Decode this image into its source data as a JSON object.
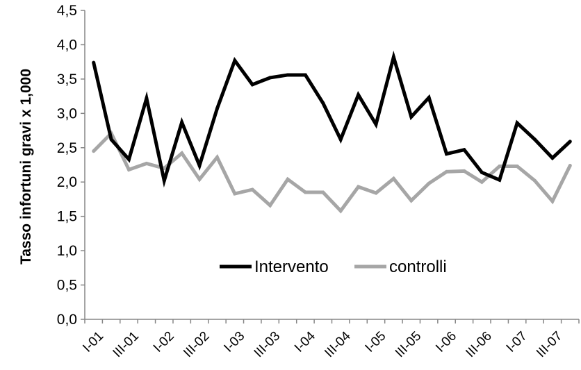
{
  "chart_data": {
    "type": "line",
    "title": "",
    "xlabel": "",
    "ylabel": "Tasso infortuni gravi x 1,000",
    "ylim": [
      0,
      4.5
    ],
    "yticks": [
      "0,0",
      "0,5",
      "1,0",
      "1,5",
      "2,0",
      "2,5",
      "3,0",
      "3,5",
      "4,0",
      "4,5"
    ],
    "grid": false,
    "legend_position": "inside-bottom-right",
    "x_tick_labels": [
      {
        "index": 0,
        "label": "I-01"
      },
      {
        "index": 2,
        "label": "III-01"
      },
      {
        "index": 4,
        "label": "I-02"
      },
      {
        "index": 6,
        "label": "III-02"
      },
      {
        "index": 8,
        "label": "I-03"
      },
      {
        "index": 10,
        "label": "III-03"
      },
      {
        "index": 12,
        "label": "I-04"
      },
      {
        "index": 14,
        "label": "III-04"
      },
      {
        "index": 16,
        "label": "I-05"
      },
      {
        "index": 18,
        "label": "III-05"
      },
      {
        "index": 20,
        "label": "I-06"
      },
      {
        "index": 22,
        "label": "III-06"
      },
      {
        "index": 24,
        "label": "I-07"
      },
      {
        "index": 26,
        "label": "III-07"
      }
    ],
    "series": [
      {
        "name": "Intervento",
        "color": "#000000",
        "values": [
          3.74,
          2.62,
          2.33,
          3.22,
          2.02,
          2.87,
          2.24,
          3.07,
          3.77,
          3.42,
          3.52,
          3.56,
          3.56,
          3.15,
          2.62,
          3.27,
          2.84,
          3.82,
          2.95,
          3.23,
          2.41,
          2.47,
          2.14,
          2.03,
          2.86,
          2.62,
          2.35,
          2.59
        ]
      },
      {
        "name": "controlli",
        "color": "#a6a6a6",
        "values": [
          2.45,
          2.71,
          2.18,
          2.27,
          2.2,
          2.42,
          2.04,
          2.36,
          1.83,
          1.89,
          1.66,
          2.04,
          1.85,
          1.85,
          1.58,
          1.93,
          1.84,
          2.05,
          1.73,
          1.98,
          2.15,
          2.16,
          2.0,
          2.23,
          2.23,
          2.02,
          1.72,
          2.24
        ]
      }
    ]
  }
}
